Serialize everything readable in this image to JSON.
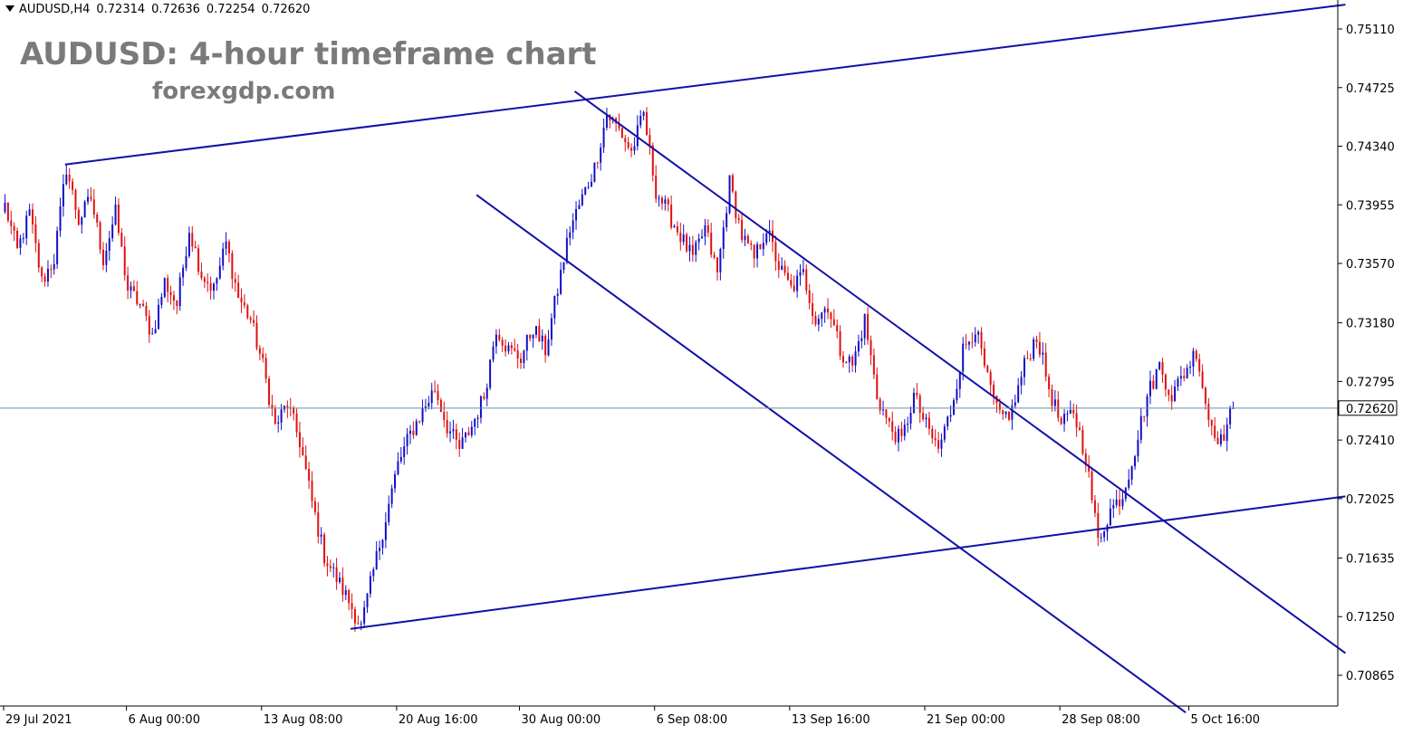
{
  "header": {
    "symbol": "AUDUSD,H4",
    "open": "0.72314",
    "high": "0.72636",
    "low": "0.72254",
    "close": "0.72620"
  },
  "title": "AUDUSD: 4-hour timeframe chart",
  "watermark_site": "forexgdp.com",
  "colors": {
    "bull": "#1010c8",
    "bear": "#e01010",
    "trendline": "#1010a8",
    "axis": "#000000",
    "price_line": "#6d8fa6"
  },
  "chart_data": {
    "type": "candlestick",
    "title": "AUDUSD: 4-hour timeframe chart",
    "xlabel": "",
    "ylabel": "",
    "ylim": [
      0.7062,
      0.7527
    ],
    "grid": false,
    "y_ticks": [
      "0.75110",
      "0.74725",
      "0.74340",
      "0.73955",
      "0.73570",
      "0.73180",
      "0.72795",
      "0.72410",
      "0.72025",
      "0.71635",
      "0.71250",
      "0.70865"
    ],
    "current_price": "0.72620",
    "x_ticks": [
      "29 Jul 2021",
      "6 Aug 00:00",
      "13 Aug 08:00",
      "20 Aug 16:00",
      "30 Aug 00:00",
      "6 Sep 08:00",
      "13 Sep 16:00",
      "21 Sep 00:00",
      "28 Sep 08:00",
      "5 Oct 16:00"
    ],
    "x_tick_bar_index": [
      0,
      40,
      84,
      128,
      168,
      212,
      256,
      300,
      344,
      386
    ],
    "close_path": [
      0.7395,
      0.7365,
      0.739,
      0.7345,
      0.736,
      0.742,
      0.7385,
      0.74,
      0.736,
      0.739,
      0.734,
      0.733,
      0.731,
      0.7345,
      0.733,
      0.738,
      0.735,
      0.734,
      0.737,
      0.7335,
      0.732,
      0.729,
      0.725,
      0.7265,
      0.724,
      0.72,
      0.7165,
      0.715,
      0.7135,
      0.7118,
      0.7155,
      0.719,
      0.7225,
      0.7245,
      0.726,
      0.7275,
      0.725,
      0.7235,
      0.725,
      0.727,
      0.7315,
      0.73,
      0.7295,
      0.7315,
      0.73,
      0.734,
      0.738,
      0.74,
      0.742,
      0.7455,
      0.7445,
      0.743,
      0.7455,
      0.7405,
      0.739,
      0.7375,
      0.736,
      0.738,
      0.735,
      0.741,
      0.7375,
      0.736,
      0.738,
      0.7355,
      0.734,
      0.735,
      0.732,
      0.733,
      0.73,
      0.729,
      0.732,
      0.727,
      0.725,
      0.724,
      0.727,
      0.725,
      0.7235,
      0.726,
      0.73,
      0.7315,
      0.728,
      0.7255,
      0.726,
      0.729,
      0.731,
      0.7275,
      0.725,
      0.726,
      0.723,
      0.7175,
      0.7195,
      0.7205,
      0.7235,
      0.727,
      0.729,
      0.727,
      0.7285,
      0.73,
      0.7255,
      0.724,
      0.7262
    ]
  },
  "trendlines": [
    {
      "name": "rising-upper",
      "from": {
        "bar": 20,
        "price": 0.7422
      },
      "to": {
        "bar": 437,
        "price": 0.7527
      }
    },
    {
      "name": "rising-lower",
      "from": {
        "bar": 113,
        "price": 0.7117
      },
      "to": {
        "bar": 437,
        "price": 0.7204
      }
    },
    {
      "name": "falling-channel-upper",
      "from": {
        "bar": 186,
        "price": 0.747
      },
      "to": {
        "bar": 437,
        "price": 0.7101
      }
    },
    {
      "name": "falling-channel-lower",
      "from": {
        "bar": 154,
        "price": 0.7402
      },
      "to": {
        "bar": 385,
        "price": 0.7062
      }
    }
  ]
}
